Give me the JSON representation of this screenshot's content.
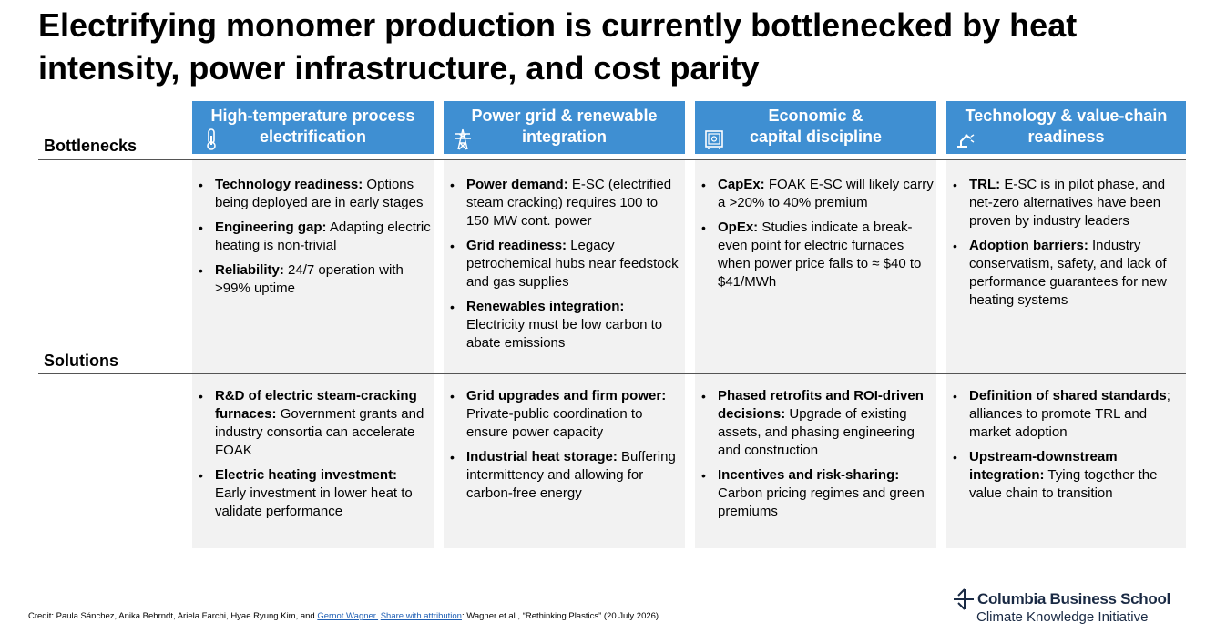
{
  "title": "Electrifying monomer production is currently bottlenecked by heat intensity, power infrastructure, and cost parity",
  "row_labels": {
    "bottlenecks": "Bottlenecks",
    "solutions": "Solutions"
  },
  "columns": [
    {
      "header": "High-temperature process\nelectrification",
      "icon": "thermometer-icon",
      "bottlenecks": [
        {
          "bold": "Technology readiness:",
          "text": " Options being deployed are in early stages"
        },
        {
          "bold": "Engineering gap:",
          "text": " Adapting electric heating is non-trivial"
        },
        {
          "bold": "Reliability:",
          "text": " 24/7 operation with >99% uptime"
        }
      ],
      "solutions": [
        {
          "bold": "R&D of electric steam-cracking furnaces:",
          "text": " Government grants and industry consortia can accelerate FOAK"
        },
        {
          "bold": "Electric heating investment:",
          "text": " Early investment in lower heat to validate performance"
        }
      ]
    },
    {
      "header": "Power grid & renewable\nintegration",
      "icon": "power-tower-icon",
      "bottlenecks": [
        {
          "bold": "Power demand:",
          "text": " E-SC (electrified steam cracking) requires 100 to 150 MW cont. power"
        },
        {
          "bold": "Grid readiness:",
          "text": " Legacy petrochemical hubs near feedstock and gas supplies"
        },
        {
          "bold": "Renewables integration:",
          "text": " Electricity must be low carbon to abate emissions"
        }
      ],
      "solutions": [
        {
          "bold": "Grid upgrades and firm power:",
          "text": " Private-public coordination to ensure power capacity"
        },
        {
          "bold": "Industrial heat storage:",
          "text": " Buffering intermittency and allowing for carbon-free energy"
        }
      ]
    },
    {
      "header": "Economic &\ncapital discipline",
      "icon": "safe-icon",
      "bottlenecks": [
        {
          "bold": "CapEx:",
          "text": " FOAK E-SC will likely carry a >20% to 40% premium"
        },
        {
          "bold": "OpEx:",
          "text": " Studies indicate a break-even point for electric furnaces when power price falls to ≈ $40 to $41/MWh"
        }
      ],
      "solutions": [
        {
          "bold": "Phased retrofits and ROI-driven decisions:",
          "text": " Upgrade of existing assets, and phasing engineering and construction"
        },
        {
          "bold": "Incentives and risk-sharing:",
          "text": " Carbon pricing regimes and green premiums"
        }
      ]
    },
    {
      "header": "Technology & value-chain\nreadiness",
      "icon": "robot-arm-icon",
      "bottlenecks": [
        {
          "bold": "TRL:",
          "text": " E-SC is in pilot phase, and net-zero alternatives have been proven by industry leaders"
        },
        {
          "bold": "Adoption barriers:",
          "text": " Industry conservatism, safety, and lack of performance guarantees for new heating systems"
        }
      ],
      "solutions": [
        {
          "bold": "Definition of shared standards",
          "text": "; alliances to promote TRL and market adoption"
        },
        {
          "bold": "Upstream-downstream integration:",
          "text": " Tying together the value chain to transition"
        }
      ]
    }
  ],
  "footer": {
    "credit_prefix": "Credit: Paula Sánchez, Anika Behrndt, Ariela Farchi, Hyae Ryung Kim, and ",
    "author_link": "Gernot Wagner.",
    "share_link": "Share with attribution",
    "credit_suffix": ": Wagner et al., “Rethinking Plastics” (20 July 2026)."
  },
  "logo": {
    "line1": "Columbia Business School",
    "line2": "Climate Knowledge Initiative"
  },
  "colors": {
    "header_blue": "#3f8fd2",
    "panel_gray": "#f2f2f2",
    "link_blue": "#1f5fb4"
  }
}
